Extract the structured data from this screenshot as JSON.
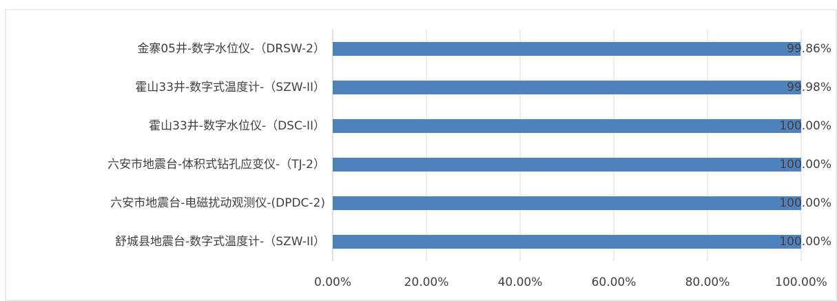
{
  "chart_data": {
    "type": "barh",
    "categories": [
      "金寨05井-数字水位仪-（DRSW-2）",
      "霍山33井-数字式温度计-（SZW-II）",
      "霍山33井-数字水位仪-（DSC-II）",
      "六安市地震台-体积式钻孔应变仪-（TJ-2）",
      "六安市地震台-电磁扰动观测仪-(DPDC-2)",
      "舒城县地震台-数字式温度计-（SZW-II）"
    ],
    "values": [
      99.86,
      99.98,
      100,
      100,
      100,
      100
    ],
    "value_labels": [
      "99.86%",
      "99.98%",
      "100.00%",
      "100.00%",
      "100.00%",
      "100.00%"
    ],
    "color": "#4f81bd",
    "xlim": [
      0,
      100
    ],
    "xticks": [
      {
        "value": 0,
        "label": "0.00%"
      },
      {
        "value": 20,
        "label": "20.00%"
      },
      {
        "value": 40,
        "label": "40.00%"
      },
      {
        "value": 60,
        "label": "60.00%"
      },
      {
        "value": 80,
        "label": "80.00%"
      },
      {
        "value": 100,
        "label": "100.00%"
      }
    ],
    "grid": true
  }
}
